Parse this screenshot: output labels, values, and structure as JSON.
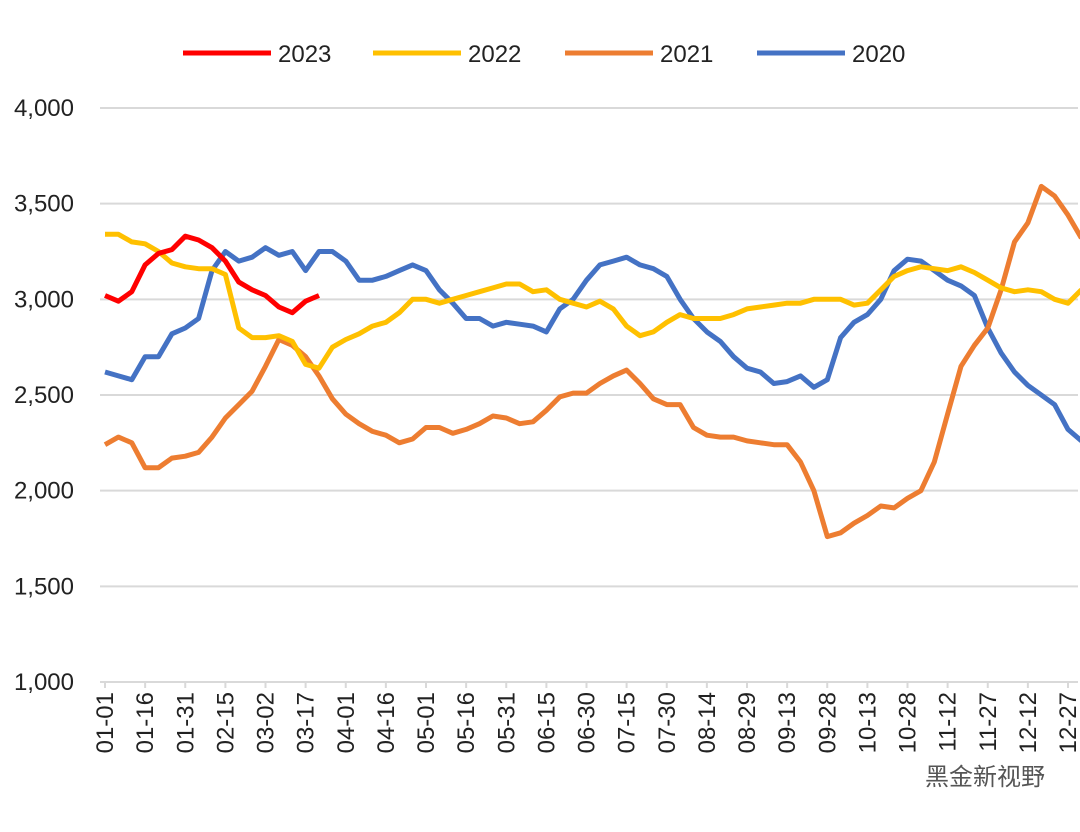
{
  "chart_data": {
    "type": "line",
    "categories": [
      "01-01",
      null,
      null,
      "01-16",
      null,
      null,
      "01-31",
      null,
      null,
      "02-15",
      null,
      null,
      "03-02",
      null,
      null,
      "03-17",
      null,
      null,
      "04-01",
      null,
      null,
      "04-16",
      null,
      null,
      "05-01",
      null,
      null,
      "05-16",
      null,
      null,
      "05-31",
      null,
      null,
      "06-15",
      null,
      null,
      "06-30",
      null,
      null,
      "07-15",
      null,
      null,
      "07-30",
      null,
      null,
      "08-14",
      null,
      null,
      "08-29",
      null,
      null,
      "09-13",
      null,
      null,
      "09-28",
      null,
      null,
      "10-13",
      null,
      null,
      "10-28",
      null,
      null,
      "11-12",
      null,
      null,
      "11-27",
      null,
      null,
      "12-12",
      null,
      null,
      "12-27",
      null
    ],
    "series": [
      {
        "name": "2023",
        "color": "#ff0000",
        "values": [
          3020,
          2990,
          3040,
          3180,
          3240,
          3260,
          3330,
          3310,
          3270,
          3200,
          3090,
          3050,
          3020,
          2960,
          2930,
          2990,
          3020,
          null,
          null,
          null,
          null,
          null,
          null,
          null,
          null,
          null,
          null,
          null,
          null,
          null,
          null,
          null,
          null,
          null,
          null,
          null,
          null,
          null,
          null,
          null,
          null,
          null,
          null,
          null,
          null,
          null,
          null,
          null,
          null,
          null,
          null,
          null,
          null,
          null,
          null,
          null,
          null,
          null,
          null,
          null,
          null,
          null,
          null,
          null,
          null,
          null,
          null,
          null,
          null,
          null,
          null,
          null,
          null,
          null
        ]
      },
      {
        "name": "2022",
        "color": "#ffc000",
        "values": [
          3340,
          3340,
          3300,
          3290,
          3250,
          3190,
          3170,
          3160,
          3160,
          3130,
          2850,
          2800,
          2800,
          2810,
          2780,
          2660,
          2640,
          2750,
          2790,
          2820,
          2860,
          2880,
          2930,
          3000,
          3000,
          2980,
          3000,
          3020,
          3040,
          3060,
          3080,
          3080,
          3040,
          3050,
          3000,
          2980,
          2960,
          2990,
          2950,
          2860,
          2810,
          2830,
          2880,
          2920,
          2900,
          2900,
          2900,
          2920,
          2950,
          2960,
          2970,
          2980,
          2980,
          3000,
          3000,
          3000,
          2970,
          2980,
          3050,
          3120,
          3150,
          3170,
          3160,
          3150,
          3170,
          3140,
          3100,
          3060,
          3040,
          3050,
          3040,
          3000,
          2980,
          3050
        ]
      },
      {
        "name": "2021",
        "color": "#ed7d31",
        "values": [
          2240,
          2280,
          2250,
          2120,
          2120,
          2170,
          2180,
          2200,
          2280,
          2380,
          2450,
          2520,
          2650,
          2790,
          2760,
          2700,
          2600,
          2480,
          2400,
          2350,
          2310,
          2290,
          2250,
          2270,
          2330,
          2330,
          2300,
          2320,
          2350,
          2390,
          2380,
          2350,
          2360,
          2420,
          2490,
          2510,
          2510,
          2560,
          2600,
          2630,
          2560,
          2480,
          2450,
          2450,
          2330,
          2290,
          2280,
          2280,
          2260,
          2250,
          2240,
          2240,
          2150,
          2000,
          1760,
          1780,
          1830,
          1870,
          1920,
          1910,
          1960,
          2000,
          2150,
          2400,
          2650,
          2760,
          2850,
          3050,
          3300,
          3400,
          3590,
          3540,
          3440,
          3320
        ]
      },
      {
        "name": "2020",
        "color": "#4472c4",
        "values": [
          2620,
          2600,
          2580,
          2700,
          2700,
          2820,
          2850,
          2900,
          3150,
          3250,
          3200,
          3220,
          3270,
          3230,
          3250,
          3150,
          3250,
          3250,
          3200,
          3100,
          3100,
          3120,
          3150,
          3180,
          3150,
          3050,
          2980,
          2900,
          2900,
          2860,
          2880,
          2870,
          2860,
          2830,
          2950,
          3000,
          3100,
          3180,
          3200,
          3220,
          3180,
          3160,
          3120,
          3000,
          2900,
          2830,
          2780,
          2700,
          2640,
          2620,
          2560,
          2570,
          2600,
          2540,
          2580,
          2800,
          2880,
          2920,
          3000,
          3150,
          3210,
          3200,
          3150,
          3100,
          3070,
          3020,
          2850,
          2720,
          2620,
          2550,
          2500,
          2450,
          2320,
          2260
        ]
      }
    ],
    "ylim": [
      1000,
      4000
    ],
    "yticks": [
      {
        "value": 1000,
        "label": "1,000"
      },
      {
        "value": 1500,
        "label": "1,500"
      },
      {
        "value": 2000,
        "label": "2,000"
      },
      {
        "value": 2500,
        "label": "2,500"
      },
      {
        "value": 3000,
        "label": "3,000"
      },
      {
        "value": 3500,
        "label": "3,500"
      },
      {
        "value": 4000,
        "label": "4,000"
      }
    ],
    "grid": true,
    "legend": "top",
    "watermark": "黑金新视野"
  }
}
